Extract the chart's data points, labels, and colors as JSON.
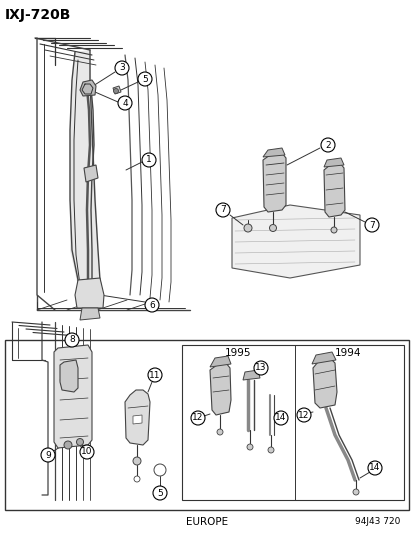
{
  "title": "IXJ-720B",
  "bg_color": "#ffffff",
  "fig_width": 4.14,
  "fig_height": 5.33,
  "dpi": 100,
  "footer_left": "EUROPE",
  "footer_right": "94J43 720",
  "year_1995": "1995",
  "year_1994": "1994"
}
